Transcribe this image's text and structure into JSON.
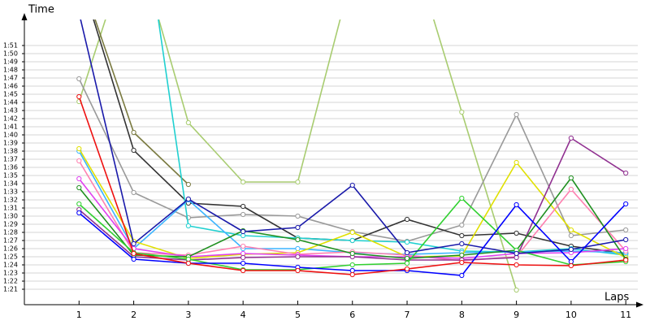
{
  "chart_data": {
    "type": "line",
    "y_label": "Time",
    "x_label": "Laps",
    "x": [
      1,
      2,
      3,
      4,
      5,
      6,
      7,
      8,
      9,
      10,
      11
    ],
    "xlim": [
      0,
      11.22
    ],
    "xticks": [
      1,
      2,
      3,
      4,
      5,
      6,
      7,
      8,
      9,
      10,
      11
    ],
    "ylim": [
      79,
      114
    ],
    "yticks": [
      {
        "value": 81,
        "label": "1:21"
      },
      {
        "value": 82,
        "label": "1:22"
      },
      {
        "value": 83,
        "label": "1:23"
      },
      {
        "value": 84,
        "label": "1:24"
      },
      {
        "value": 85,
        "label": "1:25"
      },
      {
        "value": 86,
        "label": "1:26"
      },
      {
        "value": 87,
        "label": "1:27"
      },
      {
        "value": 88,
        "label": "1:28"
      },
      {
        "value": 89,
        "label": "1:29"
      },
      {
        "value": 90,
        "label": "1:30"
      },
      {
        "value": 91,
        "label": "1:31"
      },
      {
        "value": 92,
        "label": "1:32"
      },
      {
        "value": 93,
        "label": "1:33"
      },
      {
        "value": 94,
        "label": "1:34"
      },
      {
        "value": 95,
        "label": "1:35"
      },
      {
        "value": 96,
        "label": "1:36"
      },
      {
        "value": 97,
        "label": "1:37"
      },
      {
        "value": 98,
        "label": "1:38"
      },
      {
        "value": 99,
        "label": "1:39"
      },
      {
        "value": 100,
        "label": "1:40"
      },
      {
        "value": 101,
        "label": "1:41"
      },
      {
        "value": 102,
        "label": "1:42"
      },
      {
        "value": 103,
        "label": "1:43"
      },
      {
        "value": 104,
        "label": "1:44"
      },
      {
        "value": 105,
        "label": "1:45"
      },
      {
        "value": 106,
        "label": "1:46"
      },
      {
        "value": 107,
        "label": "1:47"
      },
      {
        "value": 108,
        "label": "1:48"
      },
      {
        "value": 109,
        "label": "1:49"
      },
      {
        "value": 110,
        "label": "1:50"
      },
      {
        "value": 111,
        "label": "1:51"
      }
    ],
    "grid": true,
    "series": [
      {
        "color": "#a8cc70",
        "values": [
          104.1,
          125,
          101.5,
          94.2,
          94.2,
          120,
          125,
          102.8,
          80.9,
          null,
          null
        ]
      },
      {
        "color": "#7a7a40",
        "values": [
          120,
          100.3,
          93.9,
          null,
          null,
          null,
          null,
          null,
          null,
          null,
          null
        ]
      },
      {
        "color": "#999999",
        "values": [
          106.9,
          92.9,
          89.8,
          90.2,
          90.0,
          88.1,
          86.9,
          88.9,
          102.5,
          87.6,
          88.3
        ]
      },
      {
        "color": "#333333",
        "values": [
          120,
          98.1,
          91.6,
          91.2,
          87.3,
          87.0,
          89.6,
          87.6,
          87.9,
          86.3,
          85.4
        ]
      },
      {
        "color": "#20d0d0",
        "values": [
          null,
          135,
          88.8,
          87.6,
          87.3,
          87.0,
          86.8,
          85.7,
          85.6,
          86.0,
          85.2
        ]
      },
      {
        "color": "#3cb4ff",
        "values": [
          98.0,
          86.0,
          92.0,
          86.0,
          86.0,
          85.5,
          85.3,
          85.5,
          85.6,
          85.7,
          85.5
        ]
      },
      {
        "color": "#e0e000",
        "values": [
          98.3,
          86.9,
          84.8,
          85.3,
          85.5,
          88.0,
          85.0,
          85.1,
          96.6,
          88.3,
          84.9
        ]
      },
      {
        "color": "#ff80b0",
        "values": [
          96.8,
          85.5,
          85.2,
          86.3,
          85.3,
          85.6,
          85.2,
          84.5,
          85.0,
          93.3,
          85.7
        ]
      },
      {
        "color": "#e040f0",
        "values": [
          94.6,
          86.0,
          85.0,
          85.4,
          85.2,
          85.0,
          85.0,
          84.8,
          85.4,
          85.5,
          86.0
        ]
      },
      {
        "color": "#903090",
        "values": [
          90.8,
          85.0,
          84.6,
          84.9,
          85.0,
          85.0,
          84.6,
          84.6,
          84.9,
          99.6,
          95.3
        ]
      },
      {
        "color": "#209020",
        "values": [
          93.5,
          85.2,
          85.0,
          88.2,
          87.1,
          85.4,
          84.8,
          85.2,
          85.8,
          94.7,
          84.7
        ]
      },
      {
        "color": "#30d030",
        "values": [
          91.5,
          85.5,
          84.7,
          83.4,
          83.4,
          84.0,
          84.2,
          92.2,
          85.8,
          84.0,
          84.4
        ]
      },
      {
        "color": "#1a1aaa",
        "values": [
          115,
          86.6,
          92.1,
          88.1,
          88.6,
          93.8,
          85.5,
          86.6,
          85.4,
          85.9,
          87.1
        ]
      },
      {
        "color": "#0000ff",
        "values": [
          90.4,
          84.7,
          84.2,
          84.2,
          83.7,
          83.3,
          83.3,
          82.7,
          91.4,
          84.4,
          91.5
        ]
      },
      {
        "color": "#ee1010",
        "values": [
          104.7,
          85.4,
          84.2,
          83.3,
          83.3,
          82.8,
          83.5,
          84.3,
          84.0,
          83.9,
          84.6
        ]
      }
    ]
  }
}
